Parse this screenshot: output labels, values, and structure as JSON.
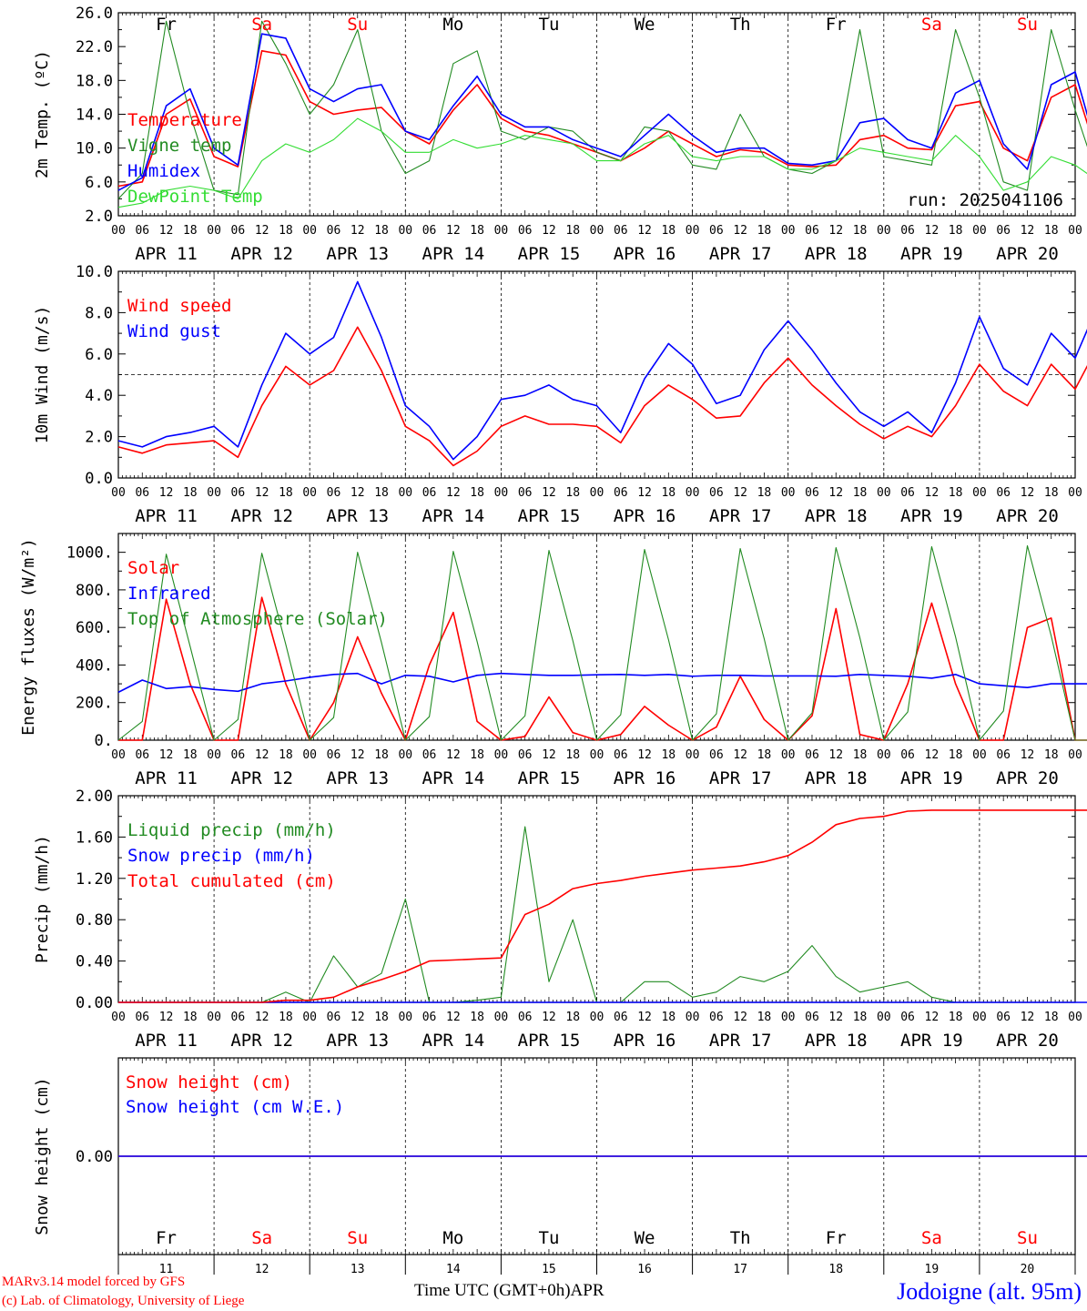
{
  "run_label": "run: 2025041106",
  "station": "Jodoigne (alt. 95m)",
  "credits": {
    "model": "MARv3.14 model forced by GFS",
    "lab": "(c) Lab. of Climatology, University of Liege"
  },
  "time_axis": {
    "label": "Time UTC (GMT+0h)",
    "month": "APR",
    "hour_ticks": [
      "00",
      "06",
      "12",
      "18"
    ],
    "final_tick": "00",
    "date_labels": [
      "APR 11",
      "APR 12",
      "APR 13",
      "APR 14",
      "APR 15",
      "APR 16",
      "APR 17",
      "APR 18",
      "APR 19",
      "APR 20"
    ],
    "day_numbers": [
      "11",
      "12",
      "13",
      "14",
      "15",
      "16",
      "17",
      "18",
      "19",
      "20"
    ],
    "weekdays": [
      "Fr",
      "Sa",
      "Su",
      "Mo",
      "Tu",
      "We",
      "Th",
      "Fr",
      "Sa",
      "Su"
    ],
    "weekend_flags": [
      false,
      true,
      true,
      false,
      false,
      false,
      false,
      false,
      true,
      true
    ]
  },
  "colors": {
    "red": "#ff0000",
    "green": "#228b22",
    "blue": "#0000ff",
    "lightgreen": "#33dd33",
    "weekday": "#000000",
    "weekend": "#ff0000"
  },
  "chart_data": [
    {
      "type": "line",
      "id": "temperature",
      "ylabel": "2m Temp. (ºC)",
      "ylim": [
        2,
        26
      ],
      "yticks": [
        "2.0",
        "6.0",
        "10.0",
        "14.0",
        "18.0",
        "22.0",
        "26.0"
      ],
      "ytick_values": [
        2,
        6,
        10,
        14,
        18,
        22,
        26
      ],
      "x_unit": "hours since APR 11 00 UTC (6-hourly samples)",
      "series": [
        {
          "name": "Temperature",
          "color": "red",
          "values": [
            5.5,
            6.0,
            14.0,
            15.8,
            9.0,
            7.8,
            21.5,
            21.0,
            15.5,
            14.0,
            14.5,
            14.8,
            12.0,
            10.5,
            14.5,
            17.5,
            13.5,
            12.0,
            11.5,
            10.5,
            9.5,
            8.5,
            10.0,
            12.0,
            10.5,
            9.0,
            9.8,
            9.5,
            8.0,
            7.8,
            8.0,
            11.0,
            11.5,
            10.0,
            9.8,
            15.0,
            15.5,
            10.0,
            8.5,
            16.0,
            17.5,
            8.5
          ]
        },
        {
          "name": "Vigne temp",
          "color": "green",
          "values": [
            4.0,
            7.0,
            25.0,
            14.0,
            5.0,
            4.5,
            25.0,
            20.0,
            14.0,
            17.5,
            24.0,
            12.0,
            7.0,
            8.5,
            20.0,
            21.5,
            12.0,
            11.0,
            12.5,
            12.0,
            9.5,
            8.5,
            12.5,
            12.0,
            8.0,
            7.5,
            14.0,
            9.0,
            7.5,
            7.0,
            8.5,
            24.0,
            9.0,
            8.5,
            8.0,
            24.0,
            16.0,
            6.0,
            5.0,
            24.0,
            14.5,
            6.0
          ]
        },
        {
          "name": "Humidex",
          "color": "blue",
          "values": [
            5.0,
            6.5,
            15.0,
            17.0,
            10.0,
            8.0,
            23.5,
            23.0,
            17.0,
            15.5,
            17.0,
            17.5,
            12.0,
            11.0,
            15.0,
            18.5,
            14.0,
            12.5,
            12.5,
            11.0,
            10.0,
            9.0,
            11.5,
            14.0,
            11.5,
            9.5,
            10.0,
            10.0,
            8.2,
            8.0,
            8.5,
            13.0,
            13.5,
            11.0,
            10.0,
            16.5,
            18.0,
            10.5,
            7.5,
            17.5,
            19.0,
            9.0
          ]
        },
        {
          "name": "DewPoint Temp",
          "color": "lightgreen",
          "values": [
            3.0,
            3.5,
            5.0,
            5.5,
            5.0,
            4.0,
            8.5,
            10.5,
            9.5,
            11.0,
            13.5,
            12.0,
            9.5,
            9.5,
            11.0,
            10.0,
            10.5,
            11.5,
            11.0,
            10.5,
            8.5,
            8.5,
            10.5,
            11.5,
            9.0,
            8.5,
            9.0,
            9.0,
            7.5,
            7.5,
            8.5,
            10.0,
            9.5,
            9.0,
            8.5,
            11.5,
            9.0,
            5.0,
            6.0,
            9.0,
            8.0,
            6.0
          ]
        }
      ]
    },
    {
      "type": "line",
      "id": "wind",
      "ylabel": "10m Wind (m/s)",
      "ylim": [
        0,
        10
      ],
      "yticks": [
        "0.0",
        "2.0",
        "4.0",
        "6.0",
        "8.0",
        "10.0"
      ],
      "ytick_values": [
        0,
        2,
        4,
        6,
        8,
        10
      ],
      "reference_line": 5,
      "series": [
        {
          "name": "Wind speed",
          "color": "red",
          "values": [
            1.5,
            1.2,
            1.6,
            1.7,
            1.8,
            1.0,
            3.5,
            5.4,
            4.5,
            5.2,
            7.3,
            5.2,
            2.5,
            1.8,
            0.6,
            1.3,
            2.5,
            3.0,
            2.6,
            2.6,
            2.5,
            1.7,
            3.5,
            4.5,
            3.8,
            2.9,
            3.0,
            4.6,
            5.8,
            4.5,
            3.5,
            2.6,
            1.9,
            2.5,
            2.0,
            3.5,
            5.5,
            4.2,
            3.5,
            5.5,
            4.3,
            6.5
          ]
        },
        {
          "name": "Wind gust",
          "color": "blue",
          "values": [
            1.8,
            1.5,
            2.0,
            2.2,
            2.5,
            1.5,
            4.5,
            7.0,
            6.0,
            6.8,
            9.5,
            6.8,
            3.5,
            2.5,
            0.9,
            2.0,
            3.8,
            4.0,
            4.5,
            3.8,
            3.5,
            2.2,
            4.8,
            6.5,
            5.5,
            3.6,
            4.0,
            6.2,
            7.6,
            6.2,
            4.6,
            3.2,
            2.5,
            3.2,
            2.2,
            4.6,
            7.8,
            5.3,
            4.5,
            7.0,
            5.8,
            8.5
          ]
        }
      ]
    },
    {
      "type": "line",
      "id": "energy",
      "ylabel": "Energy fluxes (W/m²)",
      "ylim": [
        0,
        1100
      ],
      "yticks": [
        "0.",
        "200.",
        "400.",
        "600.",
        "800.",
        "1000."
      ],
      "ytick_values": [
        0,
        200,
        400,
        600,
        800,
        1000
      ],
      "series": [
        {
          "name": "Solar",
          "color": "red",
          "values": [
            0,
            0,
            750,
            300,
            0,
            0,
            760,
            300,
            0,
            200,
            550,
            250,
            0,
            400,
            680,
            100,
            0,
            20,
            230,
            40,
            0,
            30,
            180,
            80,
            0,
            70,
            340,
            110,
            0,
            130,
            700,
            30,
            0,
            300,
            730,
            300,
            0,
            0,
            600,
            650,
            0,
            0
          ]
        },
        {
          "name": "Infrared",
          "color": "blue",
          "values": [
            255,
            320,
            275,
            285,
            270,
            260,
            300,
            315,
            335,
            350,
            355,
            300,
            345,
            340,
            310,
            345,
            355,
            350,
            345,
            345,
            348,
            350,
            345,
            350,
            340,
            345,
            345,
            342,
            342,
            342,
            340,
            350,
            345,
            340,
            330,
            350,
            300,
            290,
            280,
            300,
            300,
            300
          ]
        },
        {
          "name": "Top of Atmosphere (Solar)",
          "color": "green",
          "values": [
            0,
            100,
            990,
            500,
            0,
            110,
            995,
            510,
            0,
            120,
            1000,
            520,
            0,
            125,
            1005,
            525,
            0,
            130,
            1010,
            530,
            0,
            135,
            1015,
            535,
            0,
            140,
            1020,
            540,
            0,
            145,
            1025,
            545,
            0,
            150,
            1030,
            550,
            0,
            155,
            1035,
            555,
            0,
            0
          ]
        }
      ]
    },
    {
      "type": "line",
      "id": "precip",
      "ylabel": "Precip (mm/h)",
      "ylim": [
        0,
        2
      ],
      "yticks": [
        "0.00",
        "0.40",
        "0.80",
        "1.20",
        "1.60",
        "2.00"
      ],
      "ytick_values": [
        0,
        0.4,
        0.8,
        1.2,
        1.6,
        2.0
      ],
      "series": [
        {
          "name": "Liquid precip (mm/h)",
          "color": "green",
          "values": [
            0,
            0,
            0,
            0,
            0,
            0,
            0,
            0.1,
            0,
            0.45,
            0.15,
            0.28,
            1.0,
            0,
            0,
            0.02,
            0.05,
            1.7,
            0.2,
            0.8,
            0,
            0,
            0.2,
            0.2,
            0.05,
            0.1,
            0.25,
            0.2,
            0.3,
            0.55,
            0.25,
            0.1,
            0.15,
            0.2,
            0.05,
            0,
            0,
            0,
            0,
            0,
            0,
            0
          ]
        },
        {
          "name": "Snow precip (mm/h)",
          "color": "blue",
          "values": [
            0,
            0,
            0,
            0,
            0,
            0,
            0,
            0,
            0,
            0,
            0,
            0,
            0,
            0,
            0,
            0,
            0,
            0,
            0,
            0,
            0,
            0,
            0,
            0,
            0,
            0,
            0,
            0,
            0,
            0,
            0,
            0,
            0,
            0,
            0,
            0,
            0,
            0,
            0,
            0,
            0,
            0
          ]
        },
        {
          "name": "Total cumulated (cm)",
          "color": "red",
          "values": [
            0,
            0,
            0,
            0,
            0,
            0,
            0,
            0.02,
            0.02,
            0.05,
            0.15,
            0.22,
            0.3,
            0.4,
            0.41,
            0.42,
            0.43,
            0.85,
            0.95,
            1.1,
            1.15,
            1.18,
            1.22,
            1.25,
            1.28,
            1.3,
            1.32,
            1.36,
            1.42,
            1.55,
            1.72,
            1.78,
            1.8,
            1.85,
            1.86,
            1.86,
            1.86,
            1.86,
            1.86,
            1.86,
            1.86,
            1.86
          ]
        }
      ]
    },
    {
      "type": "line",
      "id": "snow",
      "ylabel": "Snow height (cm)",
      "ylim": [
        -1,
        1
      ],
      "yticks": [
        "0.00"
      ],
      "ytick_values": [
        0
      ],
      "series": [
        {
          "name": "Snow height (cm)",
          "color": "red",
          "values": [
            0,
            0,
            0,
            0,
            0,
            0,
            0,
            0,
            0,
            0,
            0,
            0,
            0,
            0,
            0,
            0,
            0,
            0,
            0,
            0,
            0,
            0,
            0,
            0,
            0,
            0,
            0,
            0,
            0,
            0,
            0,
            0,
            0,
            0,
            0,
            0,
            0,
            0,
            0,
            0,
            0,
            0
          ]
        },
        {
          "name": "Snow height (cm W.E.)",
          "color": "blue",
          "values": [
            0,
            0,
            0,
            0,
            0,
            0,
            0,
            0,
            0,
            0,
            0,
            0,
            0,
            0,
            0,
            0,
            0,
            0,
            0,
            0,
            0,
            0,
            0,
            0,
            0,
            0,
            0,
            0,
            0,
            0,
            0,
            0,
            0,
            0,
            0,
            0,
            0,
            0,
            0,
            0,
            0,
            0
          ]
        }
      ]
    }
  ]
}
